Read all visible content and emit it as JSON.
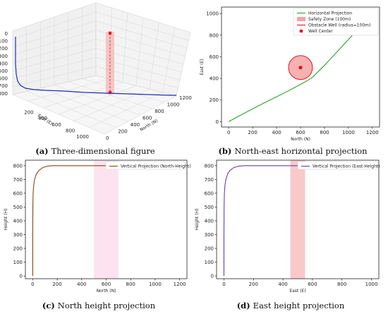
{
  "chart_data": [
    {
      "id": "a",
      "type": "line",
      "caption_letter": "(a)",
      "caption_text": "Three-dimensional figure",
      "xlabel": "North (N)",
      "ylabel": "East (E)",
      "zlabel": "",
      "x_ticks": [
        "0",
        "200",
        "400",
        "600",
        "800",
        "1000",
        "1200"
      ],
      "y_ticks": [
        "0",
        "200",
        "400",
        "600",
        "800",
        "1000"
      ],
      "z_ticks": [
        "0",
        "100",
        "200",
        "300",
        "400",
        "500",
        "600",
        "700",
        "800"
      ],
      "colors": {
        "path": "#1f2fb5",
        "well": "#e8141b",
        "zone": "#f5b5b5"
      }
    },
    {
      "id": "b",
      "type": "line",
      "caption_letter": "(b)",
      "caption_text": "North-east horizontal projection",
      "xlabel": "North (N)",
      "ylabel": "East (E)",
      "xlim": [
        -60,
        1260
      ],
      "ylim": [
        1060,
        -50
      ],
      "x_ticks": [
        0,
        200,
        400,
        600,
        800,
        1000,
        1200
      ],
      "y_ticks": [
        0,
        200,
        400,
        600,
        800,
        1000
      ],
      "series": [
        {
          "name": "Horizontal Projection",
          "color": "#2ca02c",
          "x": [
            0,
            100,
            200,
            300,
            400,
            500,
            600,
            650,
            700,
            800,
            900,
            1000,
            1100,
            1200
          ],
          "y": [
            0,
            60,
            118,
            175,
            230,
            285,
            345,
            375,
            410,
            520,
            640,
            760,
            880,
            1000
          ]
        }
      ],
      "obstacle": {
        "center": [
          600,
          500
        ],
        "radius": 100
      },
      "legend": [
        "Horizontal Projection",
        "Safety Zone (100m)",
        "Obstacle Well (radius=100m)",
        "Well Center"
      ],
      "colors": {
        "zone": "#f5a3a3",
        "well": "#e8141b"
      }
    },
    {
      "id": "c",
      "type": "line",
      "caption_letter": "(c)",
      "caption_text": "North height projection",
      "xlabel": "North (N)",
      "ylabel": "Height (H)",
      "xlim": [
        -60,
        1260
      ],
      "ylim": [
        840,
        -20
      ],
      "x_ticks": [
        0,
        200,
        400,
        600,
        800,
        1000,
        1200
      ],
      "y_ticks": [
        0,
        100,
        200,
        300,
        400,
        500,
        600,
        700,
        800
      ],
      "series": [
        {
          "name": "Vertical Projection (North-Height)",
          "color": "#8b4513",
          "x": [
            0,
            0,
            1,
            3,
            8,
            15,
            30,
            50,
            80,
            120,
            160,
            200,
            400,
            600,
            800,
            1000,
            1200
          ],
          "y": [
            0,
            300,
            500,
            600,
            660,
            700,
            740,
            765,
            785,
            797,
            800,
            800,
            800,
            800,
            800,
            800,
            800
          ]
        }
      ],
      "band": [
        500,
        700
      ],
      "legend": [
        "Vertical Projection (North-Height)"
      ],
      "colors": {
        "band": "#fde3ef"
      }
    },
    {
      "id": "d",
      "type": "line",
      "caption_letter": "(d)",
      "caption_text": "East height projection",
      "xlabel": "East (E)",
      "ylabel": "Height (H)",
      "xlim": [
        -50,
        1050
      ],
      "ylim": [
        840,
        -20
      ],
      "x_ticks": [
        0,
        200,
        400,
        600,
        800,
        1000
      ],
      "y_ticks": [
        0,
        100,
        200,
        300,
        400,
        500,
        600,
        700,
        800
      ],
      "series": [
        {
          "name": "Vertical Projection (East-Height)",
          "color": "#6a3db8",
          "x": [
            0,
            0,
            1,
            3,
            7,
            13,
            25,
            40,
            65,
            100,
            140,
            200,
            400,
            600,
            800,
            1000
          ],
          "y": [
            0,
            300,
            500,
            600,
            660,
            700,
            740,
            765,
            785,
            797,
            800,
            800,
            800,
            800,
            800,
            800
          ]
        }
      ],
      "band": [
        450,
        550
      ],
      "legend": [
        "Vertical Projection (East-Height)"
      ],
      "colors": {
        "band": "#f9c9c9"
      }
    }
  ]
}
